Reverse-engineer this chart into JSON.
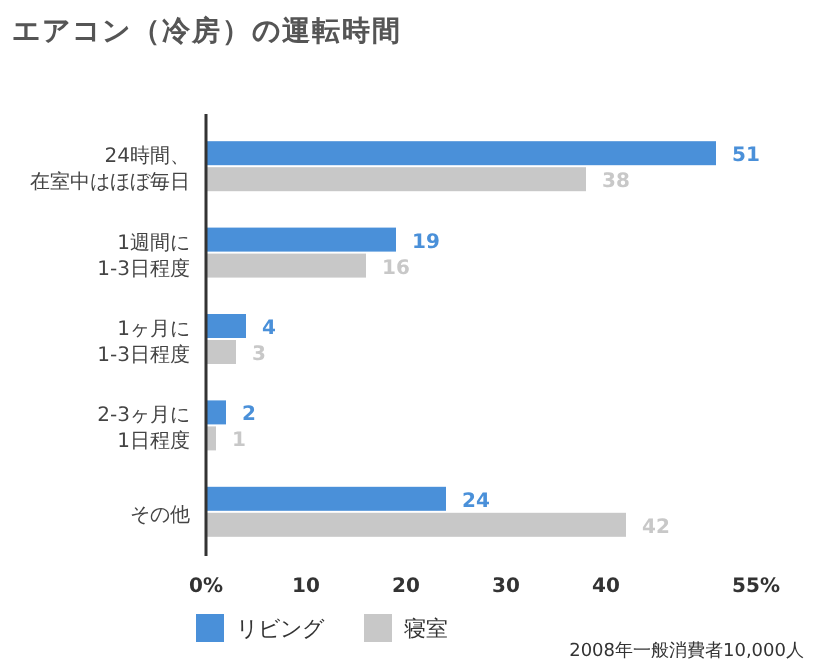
{
  "chart_data": {
    "type": "bar",
    "orientation": "horizontal",
    "title": "エアコン（冷房）の運転時間",
    "categories": [
      "24時間、在室中はほぼ毎日",
      "1週間に1-3日程度",
      "1ヶ月に1-3日程度",
      "2-3ヶ月に1日程度",
      "その他"
    ],
    "series": [
      {
        "name": "リビング",
        "color": "#4a90d9",
        "values": [
          51,
          19,
          4,
          2,
          24
        ]
      },
      {
        "name": "寝室",
        "color": "#c8c8c8",
        "values": [
          38,
          16,
          3,
          1,
          42
        ]
      }
    ],
    "xlim": [
      0,
      55
    ],
    "xticks": [
      {
        "value": 0,
        "label": "0%"
      },
      10,
      20,
      30,
      40,
      {
        "value": 55,
        "label": "55%"
      }
    ],
    "data_labels": true,
    "legend": "bottom left",
    "annotations": [
      "2008年一般消費者10,000人"
    ]
  }
}
